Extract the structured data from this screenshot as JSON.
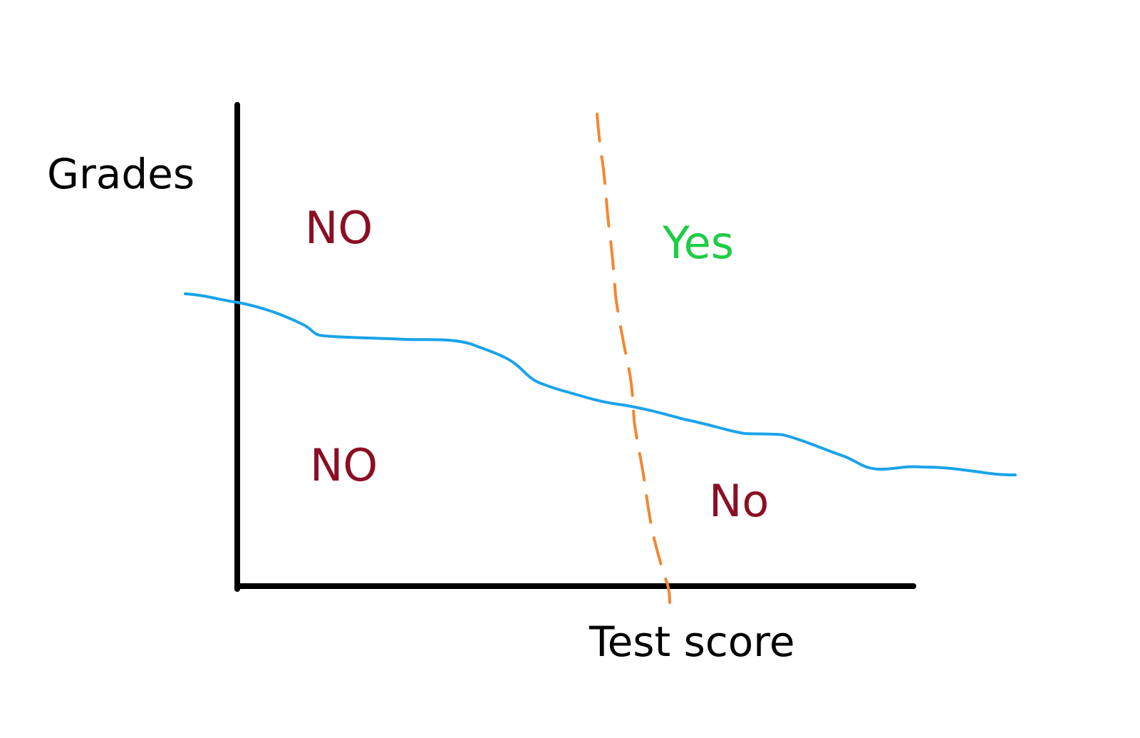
{
  "axes": {
    "y_label": "Grades",
    "x_label": "Test score"
  },
  "regions": {
    "top_left": "NO",
    "top_right": "Yes",
    "bottom_left": "NO",
    "bottom_right": "No"
  },
  "colors": {
    "axis": "#000000",
    "axis_label": "#000000",
    "grades_boundary": "#1aa3ea",
    "test_score_boundary": "#f5862f",
    "no_region_text": "#8b0f24",
    "yes_region_text": "#1fcc45"
  }
}
